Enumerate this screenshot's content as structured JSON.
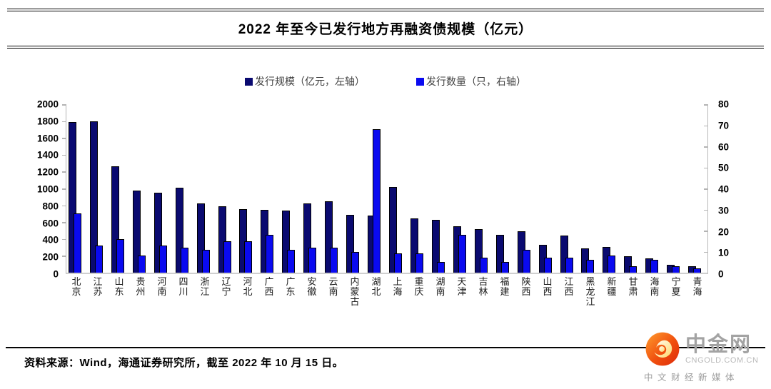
{
  "title": "2022 年至今已发行地方再融资债规模（亿元）",
  "source_note": "资料来源：Wind，海通证券研究所，截至 2022 年 10 月 15 日。",
  "logo": {
    "name": "中金网",
    "url_text": "CNGOLD.COM.CN",
    "tagline": "中文财经新媒体",
    "icon": "cngold-red-cloud-icon",
    "icon_color": "#e8380d"
  },
  "chart_data": {
    "type": "bar",
    "title": "2022 年至今已发行地方再融资债规模（亿元）",
    "grid": false,
    "legend_position": "top",
    "categories": [
      "北京",
      "江苏",
      "山东",
      "贵州",
      "河南",
      "四川",
      "浙江",
      "辽宁",
      "河北",
      "广西",
      "广东",
      "安徽",
      "云南",
      "内蒙古",
      "湖北",
      "上海",
      "重庆",
      "湖南",
      "天津",
      "吉林",
      "福建",
      "陕西",
      "山西",
      "江西",
      "黑龙江",
      "新疆",
      "甘肃",
      "海南",
      "宁夏",
      "青海"
    ],
    "series": [
      {
        "name": "发行规模（亿元，左轴）",
        "axis": "left",
        "color": "#0a0a70",
        "values": [
          1790,
          1800,
          1260,
          975,
          950,
          1010,
          825,
          785,
          755,
          745,
          735,
          820,
          845,
          690,
          680,
          1020,
          640,
          630,
          550,
          520,
          450,
          495,
          330,
          440,
          290,
          305,
          195,
          170,
          95,
          75
        ]
      },
      {
        "name": "发行数量（只，右轴）",
        "axis": "right",
        "color": "#0a0af0",
        "values": [
          28,
          13,
          16,
          8,
          13,
          12,
          11,
          15,
          15,
          18,
          11,
          12,
          12,
          10,
          68,
          9,
          9,
          5,
          18,
          7,
          5,
          11,
          7,
          7,
          6,
          8,
          3,
          6,
          3,
          2
        ]
      }
    ],
    "left_axis": {
      "min": 0,
      "max": 2000,
      "step": 200,
      "ticks": [
        2000,
        1800,
        1600,
        1400,
        1200,
        1000,
        800,
        600,
        400,
        200,
        0
      ]
    },
    "right_axis": {
      "min": 0,
      "max": 80,
      "step": 10,
      "ticks": [
        80,
        70,
        60,
        50,
        40,
        30,
        20,
        10,
        0
      ]
    }
  }
}
